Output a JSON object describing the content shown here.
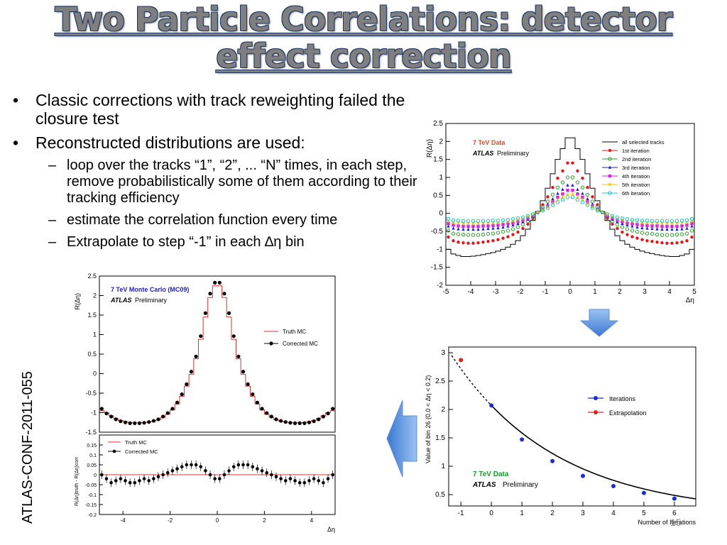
{
  "slide": {
    "title_line1": "Two Particle Correlations: detector",
    "title_line2": "effect correction",
    "bullets": [
      {
        "text": "Classic corrections with track reweighting failed the closure test",
        "subs": []
      },
      {
        "text": "Reconstructed distributions are used:",
        "subs": [
          "loop over the tracks “1”, “2”, ... “N” times, in each step, remove probabilistically some of them according to their tracking efficiency",
          "estimate the correlation function every time",
          "Extrapolate to step “-1” in each ∆η bin"
        ]
      }
    ],
    "side_label": "ATLAS-CONF-2011-055",
    "page_number": "15",
    "bullet_symbol": "•",
    "dash_symbol": "–",
    "colors": {
      "title_fill": "#7f7f7f",
      "title_outline": "#1f3864",
      "arrow": "#4a86d8"
    }
  },
  "chart_data": [
    {
      "type": "line",
      "panel": "top-right",
      "ylabel": "R(Δη)",
      "xlabel": "Δη",
      "xlim": [
        -5,
        5
      ],
      "ylim": [
        -2,
        2.5
      ],
      "xticks": [
        "-5",
        "-4",
        "-3",
        "-2",
        "-1",
        "0",
        "1",
        "2",
        "3",
        "4",
        "5"
      ],
      "yticks": [
        "-2",
        "-1.5",
        "-1",
        "-0.5",
        "0",
        "0.5",
        "1",
        "1.5",
        "2",
        "2.5"
      ],
      "label_data": "7 TeV Data",
      "label_atlas": "ATLAS",
      "label_prelim": "Preliminary",
      "legend_position": "top-right",
      "x": [
        -4.9,
        -4.7,
        -4.5,
        -4.3,
        -4.1,
        -3.9,
        -3.7,
        -3.5,
        -3.3,
        -3.1,
        -2.9,
        -2.7,
        -2.5,
        -2.3,
        -2.1,
        -1.9,
        -1.7,
        -1.5,
        -1.3,
        -1.1,
        -0.9,
        -0.7,
        -0.5,
        -0.3,
        -0.1,
        0.1,
        0.3,
        0.5,
        0.7,
        0.9,
        1.1,
        1.3,
        1.5,
        1.7,
        1.9,
        2.1,
        2.3,
        2.5,
        2.7,
        2.9,
        3.1,
        3.3,
        3.5,
        3.7,
        3.9,
        4.1,
        4.3,
        4.5,
        4.7,
        4.9
      ],
      "series": [
        {
          "name": "all selected tracks",
          "color": "#000000",
          "style": "step",
          "values": [
            -1.0,
            -1.13,
            -1.17,
            -1.2,
            -1.2,
            -1.19,
            -1.17,
            -1.15,
            -1.12,
            -1.09,
            -1.05,
            -1.0,
            -0.94,
            -0.86,
            -0.76,
            -0.62,
            -0.44,
            -0.2,
            0.05,
            0.35,
            0.7,
            1.1,
            1.5,
            1.8,
            2.1,
            2.1,
            1.8,
            1.5,
            1.1,
            0.7,
            0.35,
            0.05,
            -0.2,
            -0.44,
            -0.62,
            -0.76,
            -0.86,
            -0.94,
            -1.0,
            -1.05,
            -1.09,
            -1.12,
            -1.15,
            -1.17,
            -1.19,
            -1.2,
            -1.2,
            -1.17,
            -1.13,
            -1.0
          ]
        },
        {
          "name": "1st iteration",
          "color": "#e8141c",
          "marker": "dot",
          "values": [
            -0.66,
            -0.76,
            -0.8,
            -0.82,
            -0.83,
            -0.83,
            -0.82,
            -0.8,
            -0.78,
            -0.76,
            -0.73,
            -0.69,
            -0.65,
            -0.59,
            -0.52,
            -0.42,
            -0.3,
            -0.14,
            0.04,
            0.24,
            0.46,
            0.72,
            0.98,
            1.18,
            1.4,
            1.4,
            1.18,
            0.98,
            0.72,
            0.46,
            0.24,
            0.04,
            -0.14,
            -0.3,
            -0.42,
            -0.52,
            -0.59,
            -0.65,
            -0.69,
            -0.73,
            -0.76,
            -0.78,
            -0.8,
            -0.82,
            -0.83,
            -0.83,
            -0.82,
            -0.8,
            -0.76,
            -0.66
          ]
        },
        {
          "name": "2nd iteration",
          "color": "#2ca02c",
          "marker": "circle",
          "values": [
            -0.48,
            -0.56,
            -0.58,
            -0.59,
            -0.6,
            -0.6,
            -0.6,
            -0.59,
            -0.57,
            -0.56,
            -0.54,
            -0.51,
            -0.48,
            -0.44,
            -0.38,
            -0.31,
            -0.22,
            -0.1,
            0.03,
            0.17,
            0.33,
            0.52,
            0.72,
            0.86,
            1.0,
            1.0,
            0.86,
            0.72,
            0.52,
            0.33,
            0.17,
            0.03,
            -0.1,
            -0.22,
            -0.31,
            -0.38,
            -0.44,
            -0.48,
            -0.51,
            -0.54,
            -0.56,
            -0.57,
            -0.59,
            -0.6,
            -0.6,
            -0.6,
            -0.59,
            -0.58,
            -0.56,
            -0.48
          ]
        },
        {
          "name": "3rd iteration",
          "color": "#1f1fd0",
          "marker": "triangle",
          "values": [
            -0.36,
            -0.42,
            -0.44,
            -0.45,
            -0.45,
            -0.45,
            -0.45,
            -0.44,
            -0.43,
            -0.42,
            -0.41,
            -0.39,
            -0.36,
            -0.33,
            -0.29,
            -0.24,
            -0.17,
            -0.08,
            0.02,
            0.13,
            0.25,
            0.4,
            0.55,
            0.66,
            0.78,
            0.78,
            0.66,
            0.55,
            0.4,
            0.25,
            0.13,
            0.02,
            -0.08,
            -0.17,
            -0.24,
            -0.29,
            -0.33,
            -0.36,
            -0.39,
            -0.41,
            -0.42,
            -0.43,
            -0.44,
            -0.45,
            -0.45,
            -0.45,
            -0.45,
            -0.44,
            -0.42,
            -0.36
          ]
        },
        {
          "name": "4th iteration",
          "color": "#e020e0",
          "marker": "square",
          "values": [
            -0.28,
            -0.33,
            -0.35,
            -0.36,
            -0.36,
            -0.36,
            -0.36,
            -0.35,
            -0.35,
            -0.34,
            -0.33,
            -0.31,
            -0.29,
            -0.27,
            -0.23,
            -0.19,
            -0.13,
            -0.06,
            0.02,
            0.11,
            0.2,
            0.32,
            0.45,
            0.54,
            0.64,
            0.64,
            0.54,
            0.45,
            0.32,
            0.2,
            0.11,
            0.02,
            -0.06,
            -0.13,
            -0.19,
            -0.23,
            -0.27,
            -0.29,
            -0.31,
            -0.33,
            -0.34,
            -0.35,
            -0.35,
            -0.36,
            -0.36,
            -0.36,
            -0.36,
            -0.35,
            -0.33,
            -0.28
          ]
        },
        {
          "name": "5th iteration",
          "color": "#e6c800",
          "marker": "star",
          "values": [
            -0.21,
            -0.26,
            -0.27,
            -0.28,
            -0.28,
            -0.28,
            -0.28,
            -0.28,
            -0.27,
            -0.27,
            -0.26,
            -0.24,
            -0.23,
            -0.21,
            -0.18,
            -0.15,
            -0.1,
            -0.04,
            0.02,
            0.09,
            0.17,
            0.27,
            0.37,
            0.45,
            0.53,
            0.53,
            0.45,
            0.37,
            0.27,
            0.17,
            0.09,
            0.02,
            -0.04,
            -0.1,
            -0.15,
            -0.18,
            -0.21,
            -0.23,
            -0.24,
            -0.26,
            -0.27,
            -0.27,
            -0.28,
            -0.28,
            -0.28,
            -0.28,
            -0.28,
            -0.27,
            -0.26,
            -0.21
          ]
        },
        {
          "name": "6th iteration",
          "color": "#10c8c8",
          "marker": "circle",
          "values": [
            -0.15,
            -0.19,
            -0.2,
            -0.21,
            -0.21,
            -0.21,
            -0.21,
            -0.21,
            -0.21,
            -0.2,
            -0.2,
            -0.19,
            -0.18,
            -0.16,
            -0.14,
            -0.11,
            -0.07,
            -0.02,
            0.03,
            0.08,
            0.15,
            0.23,
            0.31,
            0.38,
            0.45,
            0.45,
            0.38,
            0.31,
            0.23,
            0.15,
            0.08,
            0.03,
            -0.02,
            -0.07,
            -0.11,
            -0.14,
            -0.16,
            -0.18,
            -0.19,
            -0.2,
            -0.2,
            -0.21,
            -0.21,
            -0.21,
            -0.21,
            -0.21,
            -0.21,
            -0.2,
            -0.19,
            -0.15
          ]
        }
      ]
    },
    {
      "type": "line",
      "panel": "bottom-left-upper",
      "ylabel": "R(Δη)",
      "xlim": [
        -5,
        5
      ],
      "ylim": [
        -1.5,
        2.5
      ],
      "yticks": [
        "-1.5",
        "-1",
        "-0.5",
        "0",
        "0.5",
        "1",
        "1.5",
        "2",
        "2.5"
      ],
      "label_mc": "7 TeV Monte Carlo (MC09)",
      "label_atlas": "ATLAS",
      "label_prelim": "Preliminary",
      "legend_position": "right",
      "x": [
        -4.9,
        -4.7,
        -4.5,
        -4.3,
        -4.1,
        -3.9,
        -3.7,
        -3.5,
        -3.3,
        -3.1,
        -2.9,
        -2.7,
        -2.5,
        -2.3,
        -2.1,
        -1.9,
        -1.7,
        -1.5,
        -1.3,
        -1.1,
        -0.9,
        -0.7,
        -0.5,
        -0.3,
        -0.1,
        0.1,
        0.3,
        0.5,
        0.7,
        0.9,
        1.1,
        1.3,
        1.5,
        1.7,
        1.9,
        2.1,
        2.3,
        2.5,
        2.7,
        2.9,
        3.1,
        3.3,
        3.5,
        3.7,
        3.9,
        4.1,
        4.3,
        4.5,
        4.7,
        4.9
      ],
      "series": [
        {
          "name": "Truth MC",
          "color": "#e03030",
          "style": "step",
          "values": [
            -0.95,
            -1.0,
            -1.08,
            -1.15,
            -1.2,
            -1.23,
            -1.25,
            -1.26,
            -1.26,
            -1.25,
            -1.24,
            -1.22,
            -1.18,
            -1.12,
            -1.04,
            -0.93,
            -0.78,
            -0.58,
            -0.32,
            -0.02,
            0.38,
            0.88,
            1.45,
            1.95,
            2.25,
            2.25,
            1.95,
            1.45,
            0.88,
            0.38,
            -0.02,
            -0.32,
            -0.58,
            -0.78,
            -0.93,
            -1.04,
            -1.12,
            -1.18,
            -1.22,
            -1.24,
            -1.25,
            -1.26,
            -1.26,
            -1.25,
            -1.23,
            -1.2,
            -1.15,
            -1.08,
            -1.0,
            -0.95
          ]
        },
        {
          "name": "Corrected MC",
          "color": "#000000",
          "marker": "dot",
          "values": [
            -0.9,
            -1.02,
            -1.1,
            -1.17,
            -1.22,
            -1.25,
            -1.27,
            -1.27,
            -1.27,
            -1.26,
            -1.24,
            -1.21,
            -1.17,
            -1.1,
            -1.01,
            -0.9,
            -0.74,
            -0.53,
            -0.27,
            0.05,
            0.44,
            0.96,
            1.55,
            2.05,
            2.33,
            2.33,
            2.05,
            1.55,
            0.96,
            0.44,
            0.05,
            -0.27,
            -0.53,
            -0.74,
            -0.9,
            -1.01,
            -1.1,
            -1.17,
            -1.21,
            -1.24,
            -1.26,
            -1.27,
            -1.27,
            -1.27,
            -1.25,
            -1.22,
            -1.17,
            -1.1,
            -1.02,
            -0.9
          ]
        }
      ]
    },
    {
      "type": "scatter",
      "panel": "bottom-left-lower",
      "ylabel": "R(Δη)truth - R(Δη)corr",
      "xlabel": "Δη",
      "xlim": [
        -5,
        5
      ],
      "ylim": [
        -0.2,
        0.2
      ],
      "xticks": [
        "-4",
        "-2",
        "0",
        "2",
        "4"
      ],
      "yticks": [
        "-0.2",
        "-0.15",
        "-0.1",
        "-0.05",
        "0",
        "0.05",
        "0.1",
        "0.15"
      ],
      "legend_position": "top-left",
      "series": [
        {
          "name": "Truth MC",
          "color": "#e03030",
          "style": "zero-line",
          "values": [
            0
          ]
        },
        {
          "name": "Corrected MC",
          "color": "#000000",
          "marker": "dot",
          "x": [
            -4.9,
            -4.7,
            -4.5,
            -4.3,
            -4.1,
            -3.9,
            -3.7,
            -3.5,
            -3.3,
            -3.1,
            -2.9,
            -2.7,
            -2.5,
            -2.3,
            -2.1,
            -1.9,
            -1.7,
            -1.5,
            -1.3,
            -1.1,
            -0.9,
            -0.7,
            -0.5,
            -0.3,
            -0.1,
            0.1,
            0.3,
            0.5,
            0.7,
            0.9,
            1.1,
            1.3,
            1.5,
            1.7,
            1.9,
            2.1,
            2.3,
            2.5,
            2.7,
            2.9,
            3.1,
            3.3,
            3.5,
            3.7,
            3.9,
            4.1,
            4.3,
            4.5,
            4.7,
            4.9
          ],
          "values": [
            0.0,
            -0.02,
            -0.04,
            -0.03,
            -0.02,
            -0.03,
            -0.04,
            -0.04,
            -0.03,
            -0.02,
            -0.03,
            -0.02,
            -0.01,
            0.0,
            0.01,
            0.02,
            0.03,
            0.04,
            0.05,
            0.05,
            0.05,
            0.04,
            0.02,
            0.0,
            -0.02,
            -0.02,
            0.0,
            0.02,
            0.04,
            0.05,
            0.05,
            0.05,
            0.04,
            0.03,
            0.02,
            0.01,
            0.0,
            -0.01,
            -0.02,
            -0.03,
            -0.02,
            -0.03,
            -0.04,
            -0.04,
            -0.03,
            -0.02,
            -0.03,
            -0.04,
            -0.02,
            0.0
          ]
        }
      ]
    },
    {
      "type": "line",
      "panel": "bottom-right",
      "ylabel": "Value of bin 26 (0.0 < Δη < 0.2)",
      "xlabel": "Number of Iterations",
      "xlim": [
        -1.4,
        6.7
      ],
      "ylim": [
        0.3,
        3.1
      ],
      "xticks": [
        "-1",
        "0",
        "1",
        "2",
        "3",
        "4",
        "5",
        "6"
      ],
      "yticks": [
        "0.5",
        "1",
        "1.5",
        "2",
        "2.5",
        "3"
      ],
      "label_data": "7 TeV Data",
      "label_atlas": "ATLAS",
      "label_prelim": "Preliminary",
      "legend_position": "right",
      "series": [
        {
          "name": "Iterations",
          "color": "#1a2ecc",
          "marker": "dot",
          "x": [
            0,
            1,
            2,
            3,
            4,
            5,
            6
          ],
          "values": [
            2.07,
            1.47,
            1.09,
            0.83,
            0.65,
            0.53,
            0.43
          ]
        },
        {
          "name": "Extrapolation",
          "color": "#e02020",
          "marker": "dot",
          "x": [
            -1
          ],
          "values": [
            2.87
          ]
        }
      ]
    }
  ]
}
